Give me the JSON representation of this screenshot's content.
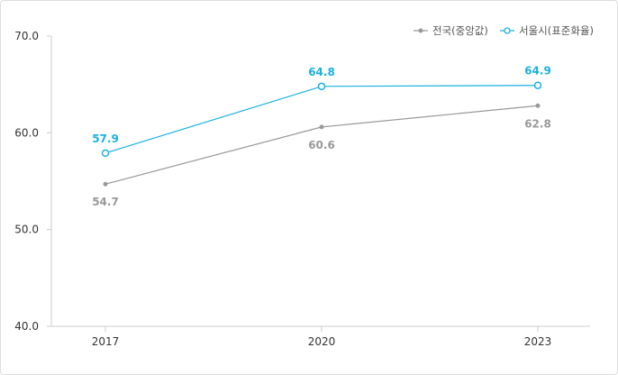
{
  "chart_data": {
    "type": "line",
    "categories": [
      "2017",
      "2020",
      "2023"
    ],
    "ylim": [
      40,
      70
    ],
    "yticks": [
      "70.0",
      "60.0",
      "50.0",
      "40.0"
    ],
    "ytick_values": [
      70,
      60,
      50,
      40
    ],
    "grid": false,
    "legend_position": "top-right",
    "series": [
      {
        "name": "전국(중앙값)",
        "values": [
          54.7,
          60.6,
          62.8
        ],
        "labels": [
          "54.7",
          "60.6",
          "62.8"
        ],
        "color": "#999999",
        "marker": "filled-circle",
        "label_position": "below"
      },
      {
        "name": "서울시(표준화율)",
        "values": [
          57.9,
          64.8,
          64.9
        ],
        "labels": [
          "57.9",
          "64.8",
          "64.9"
        ],
        "color": "#1ab1df",
        "marker": "hollow-circle",
        "label_position": "above"
      }
    ]
  }
}
